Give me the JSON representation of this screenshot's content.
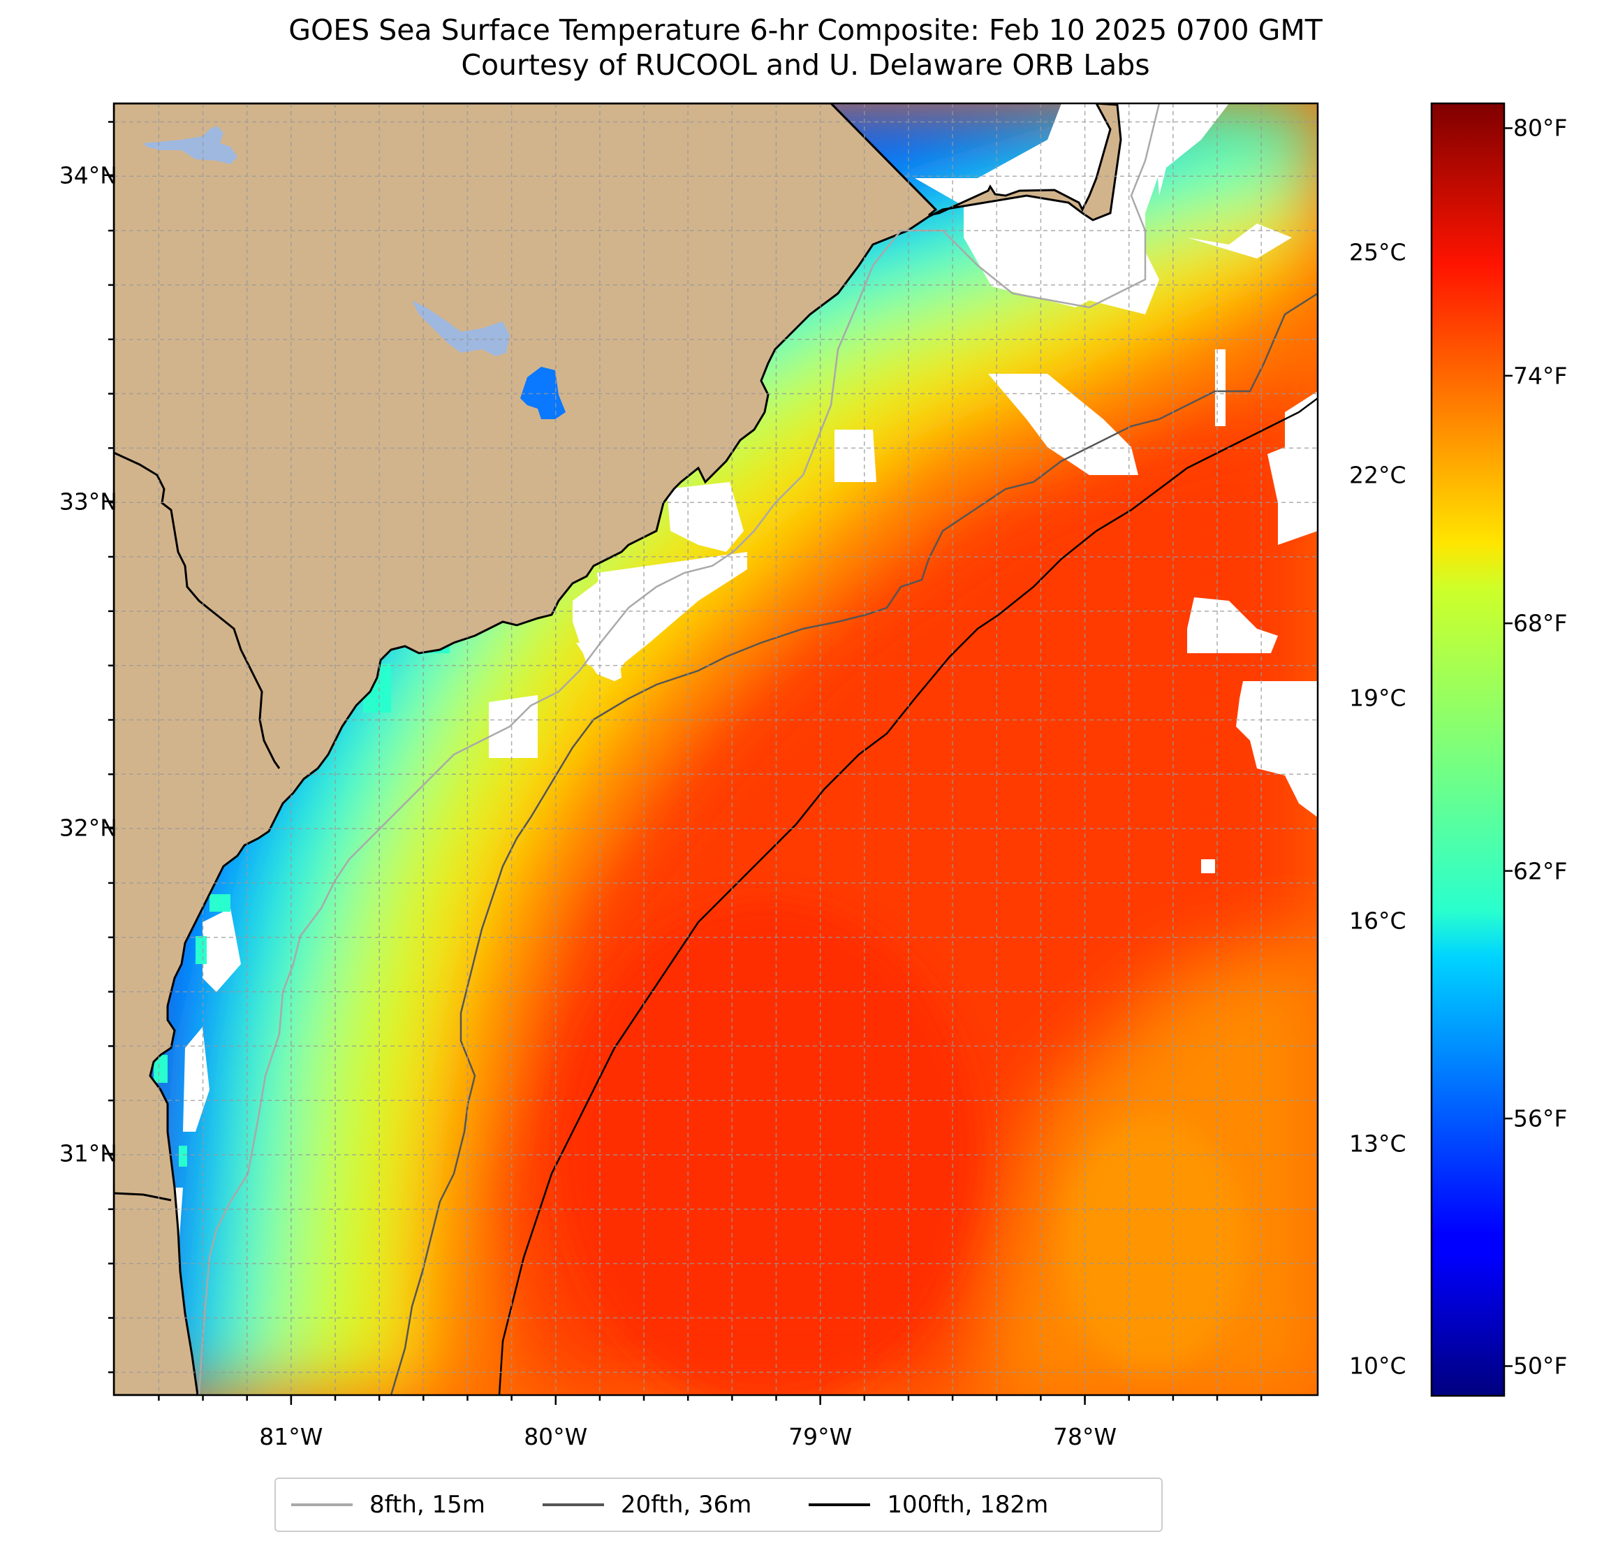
{
  "title": {
    "line1": "GOES Sea Surface Temperature 6-hr Composite: Feb 10 2025 0700 GMT",
    "line2": "Courtesy of RUCOOL and U. Delaware ORB Labs"
  },
  "map": {
    "extent": {
      "lon_min": -81.67,
      "lon_max": -77.12,
      "lat_min": 30.26,
      "lat_max": 34.22
    },
    "lat_ticks": [
      {
        "value": 34,
        "label": "34°N"
      },
      {
        "value": 33,
        "label": "33°N"
      },
      {
        "value": 32,
        "label": "32°N"
      },
      {
        "value": 31,
        "label": "31°N"
      }
    ],
    "lon_ticks": [
      {
        "value": -81,
        "label": "81°W"
      },
      {
        "value": -80,
        "label": "80°W"
      },
      {
        "value": -79,
        "label": "79°W"
      },
      {
        "value": -78,
        "label": "78°W"
      }
    ],
    "land_color": "#d2b48c",
    "gridlines": "dashed grey",
    "cloud_mask_color": "#ffffff"
  },
  "colorbar": {
    "colormap": "jet",
    "celsius_range": [
      9.6,
      27.0
    ],
    "celsius_ticks": [
      {
        "value": 10,
        "label": "10°C"
      },
      {
        "value": 13,
        "label": "13°C"
      },
      {
        "value": 16,
        "label": "16°C"
      },
      {
        "value": 19,
        "label": "19°C"
      },
      {
        "value": 22,
        "label": "22°C"
      },
      {
        "value": 25,
        "label": "25°C"
      }
    ],
    "fahrenheit_ticks": [
      {
        "value": 50,
        "label": "50°F"
      },
      {
        "value": 56,
        "label": "56°F"
      },
      {
        "value": 62,
        "label": "62°F"
      },
      {
        "value": 68,
        "label": "68°F"
      },
      {
        "value": 74,
        "label": "74°F"
      },
      {
        "value": 80,
        "label": "80°F"
      }
    ]
  },
  "legend": {
    "items": [
      {
        "label": "8fth, 15m",
        "color": "#a9a9a9"
      },
      {
        "label": "20fth, 36m",
        "color": "#555555"
      },
      {
        "label": "100fth, 182m",
        "color": "#000000"
      }
    ]
  }
}
